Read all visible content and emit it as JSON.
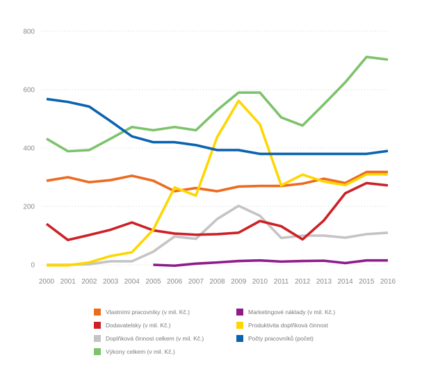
{
  "chart_data": {
    "type": "line",
    "title": "",
    "xlabel": "",
    "ylabel": "",
    "x": [
      "2000",
      "2001",
      "2002",
      "2003",
      "2004",
      "2005",
      "2006",
      "2007",
      "2008",
      "2009",
      "2010",
      "2011",
      "2012",
      "2013",
      "2014",
      "2015",
      "2016"
    ],
    "yticks": [
      "0",
      "200",
      "400",
      "600",
      "800"
    ],
    "ylim": [
      0,
      800
    ],
    "grid": true,
    "legend_position": "bottom",
    "series": [
      {
        "name": "Vlastními pracovníky (v mil. Kč.)",
        "color": "#ec6b1f",
        "values": [
          288,
          300,
          283,
          290,
          305,
          288,
          252,
          263,
          252,
          268,
          270,
          270,
          278,
          295,
          280,
          318,
          318
        ]
      },
      {
        "name": "Dodavatelsky (v mil. Kč.)",
        "color": "#cc2127",
        "values": [
          140,
          85,
          102,
          120,
          145,
          118,
          107,
          103,
          105,
          110,
          150,
          132,
          87,
          152,
          245,
          280,
          272
        ]
      },
      {
        "name": "Doplňková činnost celkem (v mil. Kč.)",
        "color": "#c4c4c4",
        "values": [
          0,
          0,
          2,
          12,
          12,
          45,
          97,
          89,
          157,
          202,
          168,
          92,
          100,
          100,
          93,
          105,
          110
        ]
      },
      {
        "name": "Výkony celkem (v mil. Kč.)",
        "color": "#7dc26c",
        "values": [
          432,
          389,
          393,
          432,
          472,
          461,
          472,
          461,
          530,
          590,
          590,
          505,
          477,
          550,
          625,
          712,
          703
        ]
      },
      {
        "name": "Marketingové náklady (v mil. Kč.)",
        "color": "#8e1a8b",
        "values": [
          null,
          null,
          null,
          null,
          null,
          0,
          -3,
          4,
          8,
          13,
          15,
          11,
          13,
          14,
          6,
          15,
          15
        ]
      },
      {
        "name": "Produktivita doplňková činnost",
        "color": "#ffd600",
        "values": [
          -2,
          -2,
          8,
          30,
          43,
          120,
          265,
          237,
          438,
          562,
          481,
          272,
          309,
          285,
          273,
          310,
          310
        ]
      },
      {
        "name": "Počty pracovníků (počet)",
        "color": "#0b63b0",
        "values": [
          568,
          558,
          542,
          492,
          440,
          420,
          420,
          410,
          393,
          393,
          380,
          380,
          380,
          380,
          380,
          380,
          390
        ]
      }
    ],
    "legend_order": [
      0,
      4,
      1,
      5,
      2,
      6,
      3
    ]
  }
}
